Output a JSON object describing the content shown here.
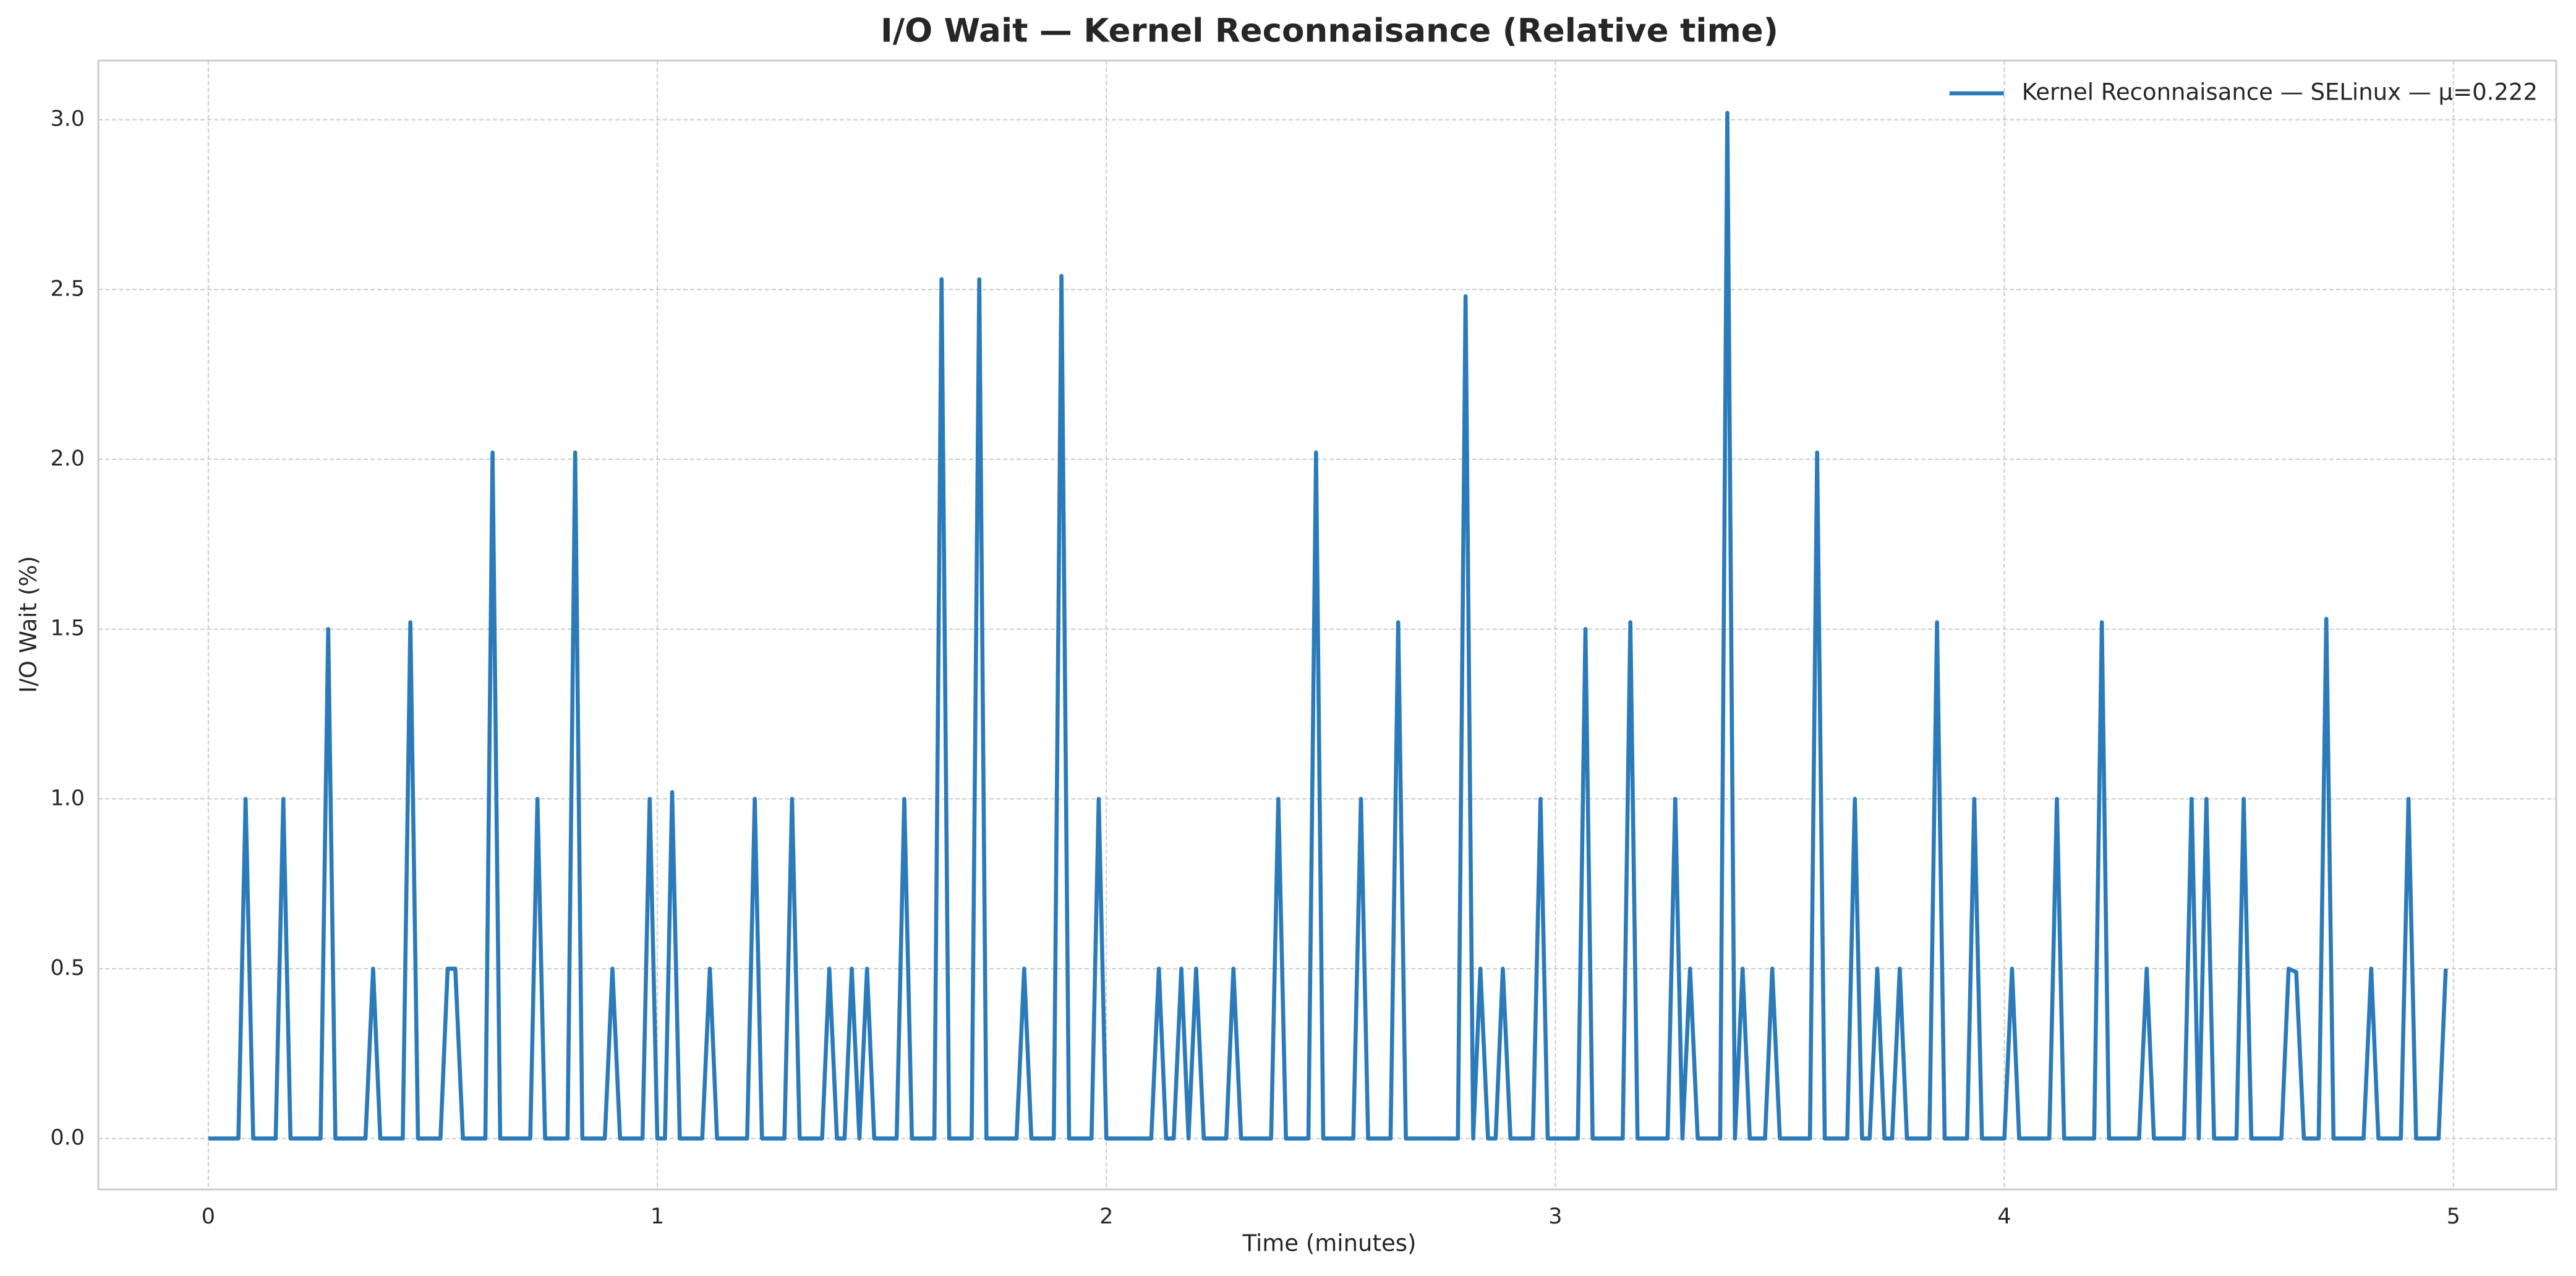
{
  "chart_data": {
    "type": "line",
    "title": "I/O Wait — Kernel Reconnaisance (Relative time)",
    "xlabel": "Time (minutes)",
    "ylabel": "I/O Wait (%)",
    "x": [
      0,
      0.017,
      0.033,
      0.05,
      0.067,
      0.083,
      0.1,
      0.117,
      0.133,
      0.15,
      0.167,
      0.183,
      0.2,
      0.217,
      0.233,
      0.25,
      0.267,
      0.283,
      0.3,
      0.317,
      0.333,
      0.35,
      0.367,
      0.383,
      0.4,
      0.417,
      0.433,
      0.45,
      0.467,
      0.483,
      0.5,
      0.517,
      0.533,
      0.55,
      0.567,
      0.583,
      0.6,
      0.617,
      0.633,
      0.65,
      0.667,
      0.683,
      0.7,
      0.717,
      0.733,
      0.75,
      0.767,
      0.783,
      0.8,
      0.817,
      0.833,
      0.85,
      0.867,
      0.883,
      0.9,
      0.917,
      0.933,
      0.95,
      0.967,
      0.983,
      1,
      1.017,
      1.033,
      1.05,
      1.067,
      1.083,
      1.1,
      1.117,
      1.133,
      1.15,
      1.167,
      1.183,
      1.2,
      1.217,
      1.233,
      1.25,
      1.267,
      1.283,
      1.3,
      1.317,
      1.333,
      1.35,
      1.367,
      1.383,
      1.4,
      1.417,
      1.433,
      1.45,
      1.467,
      1.483,
      1.5,
      1.517,
      1.533,
      1.55,
      1.567,
      1.583,
      1.6,
      1.617,
      1.633,
      1.65,
      1.667,
      1.683,
      1.7,
      1.717,
      1.733,
      1.75,
      1.767,
      1.783,
      1.8,
      1.817,
      1.833,
      1.85,
      1.867,
      1.883,
      1.9,
      1.917,
      1.933,
      1.95,
      1.967,
      1.983,
      2,
      2.017,
      2.033,
      2.05,
      2.067,
      2.083,
      2.1,
      2.117,
      2.133,
      2.15,
      2.167,
      2.183,
      2.2,
      2.217,
      2.233,
      2.25,
      2.267,
      2.283,
      2.3,
      2.317,
      2.333,
      2.35,
      2.367,
      2.383,
      2.4,
      2.417,
      2.433,
      2.45,
      2.467,
      2.483,
      2.5,
      2.517,
      2.533,
      2.55,
      2.567,
      2.583,
      2.6,
      2.617,
      2.633,
      2.65,
      2.667,
      2.683,
      2.7,
      2.717,
      2.733,
      2.75,
      2.767,
      2.783,
      2.8,
      2.817,
      2.833,
      2.85,
      2.867,
      2.883,
      2.9,
      2.917,
      2.933,
      2.95,
      2.967,
      2.983,
      3,
      3.017,
      3.033,
      3.05,
      3.067,
      3.083,
      3.1,
      3.117,
      3.133,
      3.15,
      3.167,
      3.183,
      3.2,
      3.217,
      3.233,
      3.25,
      3.267,
      3.283,
      3.3,
      3.317,
      3.333,
      3.35,
      3.367,
      3.383,
      3.4,
      3.417,
      3.433,
      3.45,
      3.467,
      3.483,
      3.5,
      3.517,
      3.533,
      3.55,
      3.567,
      3.583,
      3.6,
      3.617,
      3.633,
      3.65,
      3.667,
      3.683,
      3.7,
      3.717,
      3.733,
      3.75,
      3.767,
      3.783,
      3.8,
      3.817,
      3.833,
      3.85,
      3.867,
      3.883,
      3.9,
      3.917,
      3.933,
      3.95,
      3.967,
      3.983,
      4,
      4.017,
      4.033,
      4.05,
      4.067,
      4.083,
      4.1,
      4.117,
      4.133,
      4.15,
      4.167,
      4.183,
      4.2,
      4.217,
      4.233,
      4.25,
      4.267,
      4.283,
      4.3,
      4.317,
      4.333,
      4.35,
      4.367,
      4.383,
      4.4,
      4.417,
      4.433,
      4.45,
      4.467,
      4.483,
      4.5,
      4.517,
      4.533,
      4.55,
      4.567,
      4.583,
      4.6,
      4.617,
      4.633,
      4.65,
      4.667,
      4.683,
      4.7,
      4.717,
      4.733,
      4.75,
      4.767,
      4.783,
      4.8,
      4.817,
      4.833,
      4.85,
      4.867,
      4.883,
      4.9,
      4.917,
      4.933,
      4.95,
      4.967,
      4.983
    ],
    "series": [
      {
        "name": "Kernel Reconnaisance — SELinux — μ=0.222",
        "color": "#2b7bba",
        "values": [
          0,
          0,
          0,
          0,
          0,
          1,
          0,
          0,
          0,
          0,
          1,
          0,
          0,
          0,
          0,
          0,
          1.5,
          0,
          0,
          0,
          0,
          0,
          0.5,
          0,
          0,
          0,
          0,
          1.52,
          0,
          0,
          0,
          0,
          0.5,
          0.5,
          0,
          0,
          0,
          0,
          2.02,
          0,
          0,
          0,
          0,
          0,
          1,
          0,
          0,
          0,
          0,
          2.02,
          0,
          0,
          0,
          0,
          0.5,
          0,
          0,
          0,
          0,
          1,
          0,
          0,
          1.02,
          0,
          0,
          0,
          0,
          0.5,
          0,
          0,
          0,
          0,
          0,
          1,
          0,
          0,
          0,
          0,
          1,
          0,
          0,
          0,
          0,
          0.5,
          0,
          0,
          0.5,
          0,
          0.5,
          0,
          0,
          0,
          0,
          1,
          0,
          0,
          0,
          0,
          2.53,
          0,
          0,
          0,
          0,
          2.53,
          0,
          0,
          0,
          0,
          0,
          0.5,
          0,
          0,
          0,
          0,
          2.54,
          0,
          0,
          0,
          0,
          1,
          0,
          0,
          0,
          0,
          0,
          0,
          0,
          0.5,
          0,
          0,
          0.5,
          0,
          0.5,
          0,
          0,
          0,
          0,
          0.5,
          0,
          0,
          0,
          0,
          0,
          1,
          0,
          0,
          0,
          0,
          2.02,
          0,
          0,
          0,
          0,
          0,
          1,
          0,
          0,
          0,
          0,
          1.52,
          0,
          0,
          0,
          0,
          0,
          0,
          0,
          0,
          2.48,
          0,
          0.5,
          0,
          0,
          0.5,
          0,
          0,
          0,
          0,
          1,
          0,
          0,
          0,
          0,
          0,
          1.5,
          0,
          0,
          0,
          0,
          0,
          1.52,
          0,
          0,
          0,
          0,
          0,
          1,
          0,
          0.5,
          0,
          0,
          0,
          0,
          3.02,
          0,
          0.5,
          0,
          0,
          0,
          0.5,
          0,
          0,
          0,
          0,
          0,
          2.02,
          0,
          0,
          0,
          0,
          1,
          0,
          0,
          0.5,
          0,
          0,
          0.5,
          0,
          0,
          0,
          0,
          1.52,
          0,
          0,
          0,
          0,
          1,
          0,
          0,
          0,
          0,
          0.5,
          0,
          0,
          0,
          0,
          0,
          1,
          0,
          0,
          0,
          0,
          0,
          1.52,
          0,
          0,
          0,
          0,
          0,
          0.5,
          0,
          0,
          0,
          0,
          0,
          1,
          0,
          1,
          0,
          0,
          0,
          0,
          1,
          0,
          0,
          0,
          0,
          0,
          0.5,
          0.49,
          0,
          0,
          0,
          1.53,
          0,
          0,
          0,
          0,
          0,
          0.5,
          0,
          0,
          0,
          0,
          1,
          0,
          0,
          0,
          0,
          0.5
        ]
      }
    ],
    "xlim": [
      -0.245,
      5.229
    ],
    "xticks": [
      0,
      1,
      2,
      3,
      4,
      5
    ],
    "ylim": [
      -0.15,
      3.174
    ],
    "yticks": [
      {
        "value": 0,
        "label": "0.0"
      },
      0.5,
      {
        "value": 1,
        "label": "1.0"
      },
      1.5,
      {
        "value": 2,
        "label": "2.0"
      },
      2.5,
      {
        "value": 3,
        "label": "3.0"
      }
    ],
    "grid": true,
    "legend": "upper right"
  }
}
